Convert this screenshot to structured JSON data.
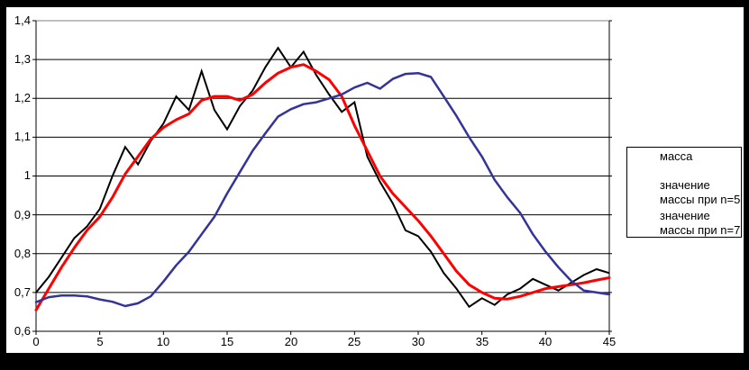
{
  "chart_data": {
    "type": "line",
    "title": "",
    "xlabel": "",
    "ylabel": "",
    "xlim": [
      0,
      45
    ],
    "ylim": [
      0.6,
      1.4
    ],
    "grid": true,
    "plot_border_color": "#808080",
    "axis_color": "#000000",
    "background_color": "#ffffff",
    "frame_color": "#000000",
    "ytick_values": [
      0.6,
      0.7,
      0.8,
      0.9,
      1.0,
      1.1,
      1.2,
      1.3,
      1.4
    ],
    "ytick_labels": [
      "0,6",
      "0,7",
      "0,8",
      "0,9",
      "1",
      "1,1",
      "1,2",
      "1,3",
      "1,4"
    ],
    "xtick_values": [
      0,
      5,
      10,
      15,
      20,
      25,
      30,
      35,
      40,
      45
    ],
    "xtick_labels": [
      "0",
      "5",
      "10",
      "15",
      "20",
      "25",
      "30",
      "35",
      "40",
      "45"
    ],
    "x": [
      0,
      1,
      2,
      3,
      4,
      5,
      6,
      7,
      8,
      9,
      10,
      11,
      12,
      13,
      14,
      15,
      16,
      17,
      18,
      19,
      20,
      21,
      22,
      23,
      24,
      25,
      26,
      27,
      28,
      29,
      30,
      31,
      32,
      33,
      34,
      35,
      36,
      37,
      38,
      39,
      40,
      41,
      42,
      43,
      44,
      45
    ],
    "series": [
      {
        "name": "масса",
        "color": "#000000",
        "values": [
          0.7,
          0.74,
          0.79,
          0.84,
          0.87,
          0.915,
          1.0,
          1.075,
          1.03,
          1.09,
          1.135,
          1.205,
          1.17,
          1.27,
          1.17,
          1.12,
          1.18,
          1.22,
          1.28,
          1.33,
          1.28,
          1.32,
          1.26,
          1.21,
          1.165,
          1.19,
          1.05,
          0.985,
          0.93,
          0.86,
          0.845,
          0.805,
          0.75,
          0.71,
          0.663,
          0.685,
          0.668,
          0.695,
          0.71,
          0.735,
          0.72,
          0.705,
          0.725,
          0.745,
          0.76,
          0.75
        ]
      },
      {
        "name": "значение массы при n=5",
        "color": "#ff0000",
        "values": [
          0.655,
          0.71,
          0.765,
          0.815,
          0.86,
          0.895,
          0.945,
          1.005,
          1.05,
          1.095,
          1.125,
          1.145,
          1.16,
          1.195,
          1.205,
          1.205,
          1.195,
          1.21,
          1.24,
          1.265,
          1.28,
          1.287,
          1.27,
          1.248,
          1.205,
          1.13,
          1.065,
          1.0,
          0.955,
          0.92,
          0.885,
          0.845,
          0.8,
          0.755,
          0.72,
          0.7,
          0.685,
          0.683,
          0.69,
          0.7,
          0.71,
          0.715,
          0.72,
          0.725,
          0.732,
          0.738
        ]
      },
      {
        "name": "значение массы при n=7",
        "color": "#333399",
        "values": [
          0.675,
          0.688,
          0.692,
          0.692,
          0.69,
          0.682,
          0.676,
          0.665,
          0.672,
          0.69,
          0.728,
          0.77,
          0.805,
          0.85,
          0.895,
          0.955,
          1.01,
          1.065,
          1.11,
          1.153,
          1.172,
          1.185,
          1.19,
          1.2,
          1.21,
          1.228,
          1.24,
          1.225,
          1.25,
          1.263,
          1.265,
          1.255,
          1.205,
          1.155,
          1.1,
          1.05,
          0.99,
          0.945,
          0.905,
          0.85,
          0.805,
          0.765,
          0.73,
          0.705,
          0.7,
          0.695
        ]
      }
    ],
    "legend": {
      "position": "right",
      "entries": [
        {
          "label": "масса"
        },
        {
          "label": "значение\nмассы при n=5"
        },
        {
          "label": "значение\nмассы при n=7"
        }
      ]
    }
  }
}
